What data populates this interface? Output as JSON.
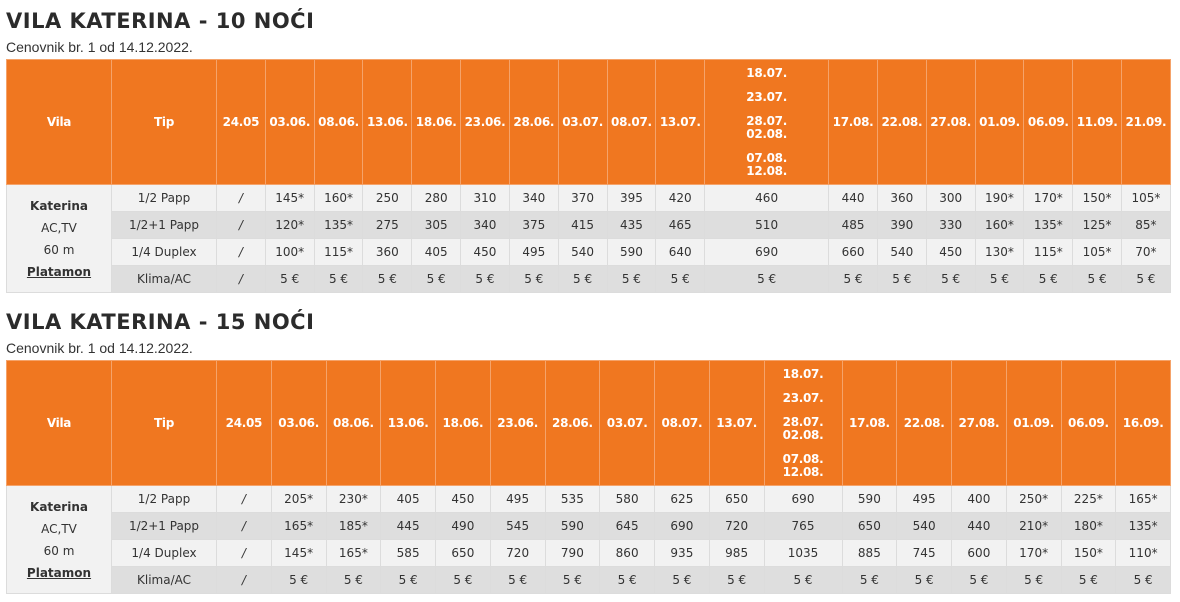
{
  "tables": [
    {
      "title": "VILA KATERINA - 10 NOĆI",
      "subtitle": "Cenovnik br. 1 od 14.12.2022.",
      "headers": {
        "vila": "Vila",
        "tip": "Tip",
        "dates": [
          "24.05",
          "03.06.",
          "08.06.",
          "13.06.",
          "18.06.",
          "23.06.",
          "28.06.",
          "03.07.",
          "08.07.",
          "13.07.",
          [
            "18.07.",
            "23.07.",
            "28.07.",
            "02.08.",
            "07.08.",
            "12.08."
          ],
          "17.08.",
          "22.08.",
          "27.08.",
          "01.09.",
          "06.09.",
          "11.09.",
          "21.09."
        ]
      },
      "vila_info": [
        "Katerina",
        "AC,TV",
        "60 m"
      ],
      "vila_link": "Platamon",
      "rows": [
        {
          "tip": "1/2 Papp",
          "values": [
            "/",
            "145*",
            "160*",
            "250",
            "280",
            "310",
            "340",
            "370",
            "395",
            "420",
            "460",
            "440",
            "360",
            "300",
            "190*",
            "170*",
            "150*",
            "105*"
          ]
        },
        {
          "tip": "1/2+1 Papp",
          "values": [
            "/",
            "120*",
            "135*",
            "275",
            "305",
            "340",
            "375",
            "415",
            "435",
            "465",
            "510",
            "485",
            "390",
            "330",
            "160*",
            "135*",
            "125*",
            "85*"
          ]
        },
        {
          "tip": "1/4 Duplex",
          "values": [
            "/",
            "100*",
            "115*",
            "360",
            "405",
            "450",
            "495",
            "540",
            "590",
            "640",
            "690",
            "660",
            "540",
            "450",
            "130*",
            "115*",
            "105*",
            "70*"
          ]
        },
        {
          "tip": "Klima/AC",
          "values": [
            "/",
            "5 €",
            "5 €",
            "5 €",
            "5 €",
            "5 €",
            "5 €",
            "5 €",
            "5 €",
            "5 €",
            "5 €",
            "5 €",
            "5 €",
            "5 €",
            "5 €",
            "5 €",
            "5 €",
            "5 €"
          ]
        }
      ]
    },
    {
      "title": "VILA KATERINA - 15 NOĆI",
      "subtitle": "Cenovnik br. 1 od 14.12.2022.",
      "headers": {
        "vila": "Vila",
        "tip": "Tip",
        "dates": [
          "24.05",
          "03.06.",
          "08.06.",
          "13.06.",
          "18.06.",
          "23.06.",
          "28.06.",
          "03.07.",
          "08.07.",
          "13.07.",
          [
            "18.07.",
            "23.07.",
            "28.07.",
            "02.08.",
            "07.08.",
            "12.08."
          ],
          "17.08.",
          "22.08.",
          "27.08.",
          "01.09.",
          "06.09.",
          "16.09."
        ]
      },
      "vila_info": [
        "Katerina",
        "AC,TV",
        "60 m"
      ],
      "vila_link": "Platamon",
      "rows": [
        {
          "tip": "1/2 Papp",
          "values": [
            "/",
            "205*",
            "230*",
            "405",
            "450",
            "495",
            "535",
            "580",
            "625",
            "650",
            "690",
            "590",
            "495",
            "400",
            "250*",
            "225*",
            "165*"
          ]
        },
        {
          "tip": "1/2+1 Papp",
          "values": [
            "/",
            "165*",
            "185*",
            "445",
            "490",
            "545",
            "590",
            "645",
            "690",
            "720",
            "765",
            "650",
            "540",
            "440",
            "210*",
            "180*",
            "135*"
          ]
        },
        {
          "tip": "1/4 Duplex",
          "values": [
            "/",
            "145*",
            "165*",
            "585",
            "650",
            "720",
            "790",
            "860",
            "935",
            "985",
            "1035",
            "885",
            "745",
            "600",
            "170*",
            "150*",
            "110*"
          ]
        },
        {
          "tip": "Klima/AC",
          "values": [
            "/",
            "5 €",
            "5 €",
            "5 €",
            "5 €",
            "5 €",
            "5 €",
            "5 €",
            "5 €",
            "5 €",
            "5 €",
            "5 €",
            "5 €",
            "5 €",
            "5 €",
            "5 €",
            "5 €"
          ]
        }
      ]
    }
  ]
}
